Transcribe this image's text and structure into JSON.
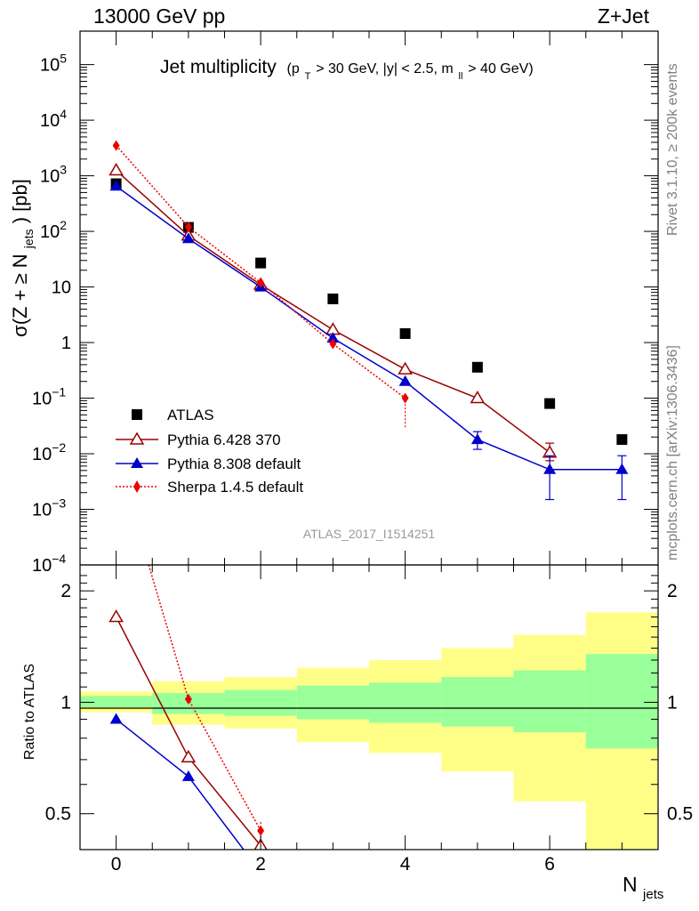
{
  "header": {
    "left": "13000 GeV pp",
    "right": "Z+Jet"
  },
  "side_texts": {
    "top": "Rivet 3.1.10, ≥ 200k events",
    "bottom": "mcplots.cern.ch [arXiv:1306.3436]"
  },
  "plot_title": {
    "main": "Jet multiplicity",
    "sub_open": "(p",
    "sub_T": "T",
    "sub_mid": " > 30 GeV, |y| < 2.5, m",
    "sub_ll": "ll",
    "sub_close": " > 40 GeV)"
  },
  "watermark": "ATLAS_2017_I1514251",
  "axis": {
    "y_main_label": "σ(Z + ≥ N",
    "y_main_sub": "jets",
    "y_main_close": ") [pb]",
    "y_ratio_label": "Ratio to ATLAS",
    "x_label": "N",
    "x_sub": "jets"
  },
  "legend": [
    {
      "label": "ATLAS"
    },
    {
      "label": "Pythia 6.428 370"
    },
    {
      "label": "Pythia 8.308 default"
    },
    {
      "label": "Sherpa 1.4.5 default"
    }
  ],
  "chart_data": {
    "type": "scatter",
    "x_ticks": [
      0,
      2,
      4,
      6
    ],
    "xlim": [
      -0.5,
      7.5
    ],
    "main_panel": {
      "y_scale": "log",
      "ylim": [
        0.0001,
        400000
      ],
      "y_ticks": [
        {
          "v": 0.0001,
          "t": "10",
          "e": "−4"
        },
        {
          "v": 0.001,
          "t": "10",
          "e": "−3"
        },
        {
          "v": 0.01,
          "t": "10",
          "e": "−2"
        },
        {
          "v": 0.1,
          "t": "10",
          "e": "−1"
        },
        {
          "v": 1,
          "t": "1",
          "e": ""
        },
        {
          "v": 10,
          "t": "10",
          "e": ""
        },
        {
          "v": 100,
          "t": "10",
          "e": "2"
        },
        {
          "v": 1000,
          "t": "10",
          "e": "3"
        },
        {
          "v": 10000,
          "t": "10",
          "e": "4"
        },
        {
          "v": 100000,
          "t": "10",
          "e": "5"
        }
      ]
    },
    "series": [
      {
        "name": "ATLAS",
        "color": "#000000",
        "marker": "square",
        "line": "none",
        "x": [
          0,
          1,
          2,
          3,
          4,
          5,
          6,
          7
        ],
        "y": [
          720,
          118,
          27,
          6.1,
          1.45,
          0.36,
          0.08,
          0.018
        ]
      },
      {
        "name": "Pythia 6.428 370",
        "color": "#990000",
        "marker": "triangle-open",
        "line": "solid",
        "x": [
          0,
          1,
          2,
          3,
          4,
          5,
          6
        ],
        "y": [
          1250,
          84,
          11,
          1.7,
          0.33,
          0.1,
          0.0105
        ],
        "err_low": [
          null,
          null,
          null,
          null,
          null,
          null,
          0.0075
        ],
        "err_high": [
          null,
          null,
          null,
          null,
          null,
          null,
          0.0155
        ]
      },
      {
        "name": "Pythia 8.308 default",
        "color": "#0000cc",
        "marker": "triangle",
        "line": "solid",
        "x": [
          0,
          1,
          2,
          3,
          4,
          5,
          6,
          7
        ],
        "y": [
          650,
          74,
          10,
          1.2,
          0.2,
          0.018,
          0.0052,
          0.0052
        ],
        "err_low": [
          null,
          null,
          null,
          null,
          null,
          0.012,
          0.0015,
          0.0015
        ],
        "err_high": [
          null,
          null,
          null,
          null,
          null,
          0.025,
          0.0092,
          0.0092
        ],
        "step_last": true
      },
      {
        "name": "Sherpa 1.4.5 default",
        "color": "#ee0000",
        "marker": "diamond",
        "line": "dotted",
        "x": [
          0,
          1,
          2,
          3,
          4
        ],
        "y": [
          3500,
          120,
          12,
          0.95,
          0.1
        ],
        "err_low": [
          null,
          null,
          null,
          null,
          0.03
        ],
        "err_high": [
          null,
          null,
          null,
          null,
          0.12
        ]
      }
    ],
    "ratio_panel": {
      "y_scale": "log",
      "ylim": [
        0.4,
        2.35
      ],
      "y_ticks": [
        0.5,
        1,
        2
      ],
      "reference_bands": [
        {
          "x0": -0.5,
          "x1": 0.5,
          "stat_lo": 0.97,
          "stat_hi": 1.04,
          "tot_lo": 0.94,
          "tot_hi": 1.07
        },
        {
          "x0": 0.5,
          "x1": 1.5,
          "stat_lo": 0.93,
          "stat_hi": 1.06,
          "tot_lo": 0.87,
          "tot_hi": 1.14
        },
        {
          "x0": 1.5,
          "x1": 2.5,
          "stat_lo": 0.92,
          "stat_hi": 1.08,
          "tot_lo": 0.85,
          "tot_hi": 1.17
        },
        {
          "x0": 2.5,
          "x1": 3.5,
          "stat_lo": 0.9,
          "stat_hi": 1.11,
          "tot_lo": 0.78,
          "tot_hi": 1.24
        },
        {
          "x0": 3.5,
          "x1": 4.5,
          "stat_lo": 0.88,
          "stat_hi": 1.13,
          "tot_lo": 0.73,
          "tot_hi": 1.3
        },
        {
          "x0": 4.5,
          "x1": 5.5,
          "stat_lo": 0.86,
          "stat_hi": 1.17,
          "tot_lo": 0.65,
          "tot_hi": 1.4
        },
        {
          "x0": 5.5,
          "x1": 6.5,
          "stat_lo": 0.83,
          "stat_hi": 1.22,
          "tot_lo": 0.54,
          "tot_hi": 1.52
        },
        {
          "x0": 6.5,
          "x1": 7.5,
          "stat_lo": 0.75,
          "stat_hi": 1.35,
          "tot_lo": 0.4,
          "tot_hi": 1.75
        }
      ],
      "series": [
        {
          "name": "Pythia 6.428 370",
          "x": [
            0,
            1,
            2,
            2.2
          ],
          "y": [
            1.7,
            0.71,
            0.41,
            0.38
          ]
        },
        {
          "name": "Pythia 8.308 default",
          "x": [
            0,
            1,
            1.85
          ],
          "y": [
            0.9,
            0.63,
            0.38
          ]
        },
        {
          "name": "Sherpa 1.4.5 default",
          "x": [
            0.45,
            1,
            2
          ],
          "y": [
            2.35,
            1.02,
            0.45
          ],
          "err_low": [
            null,
            null,
            0.42
          ],
          "err_high": [
            null,
            null,
            0.48
          ]
        }
      ]
    },
    "colors": {
      "stat_band": "#99ff99",
      "total_band": "#ffff88",
      "reference_line": "#000000"
    }
  }
}
